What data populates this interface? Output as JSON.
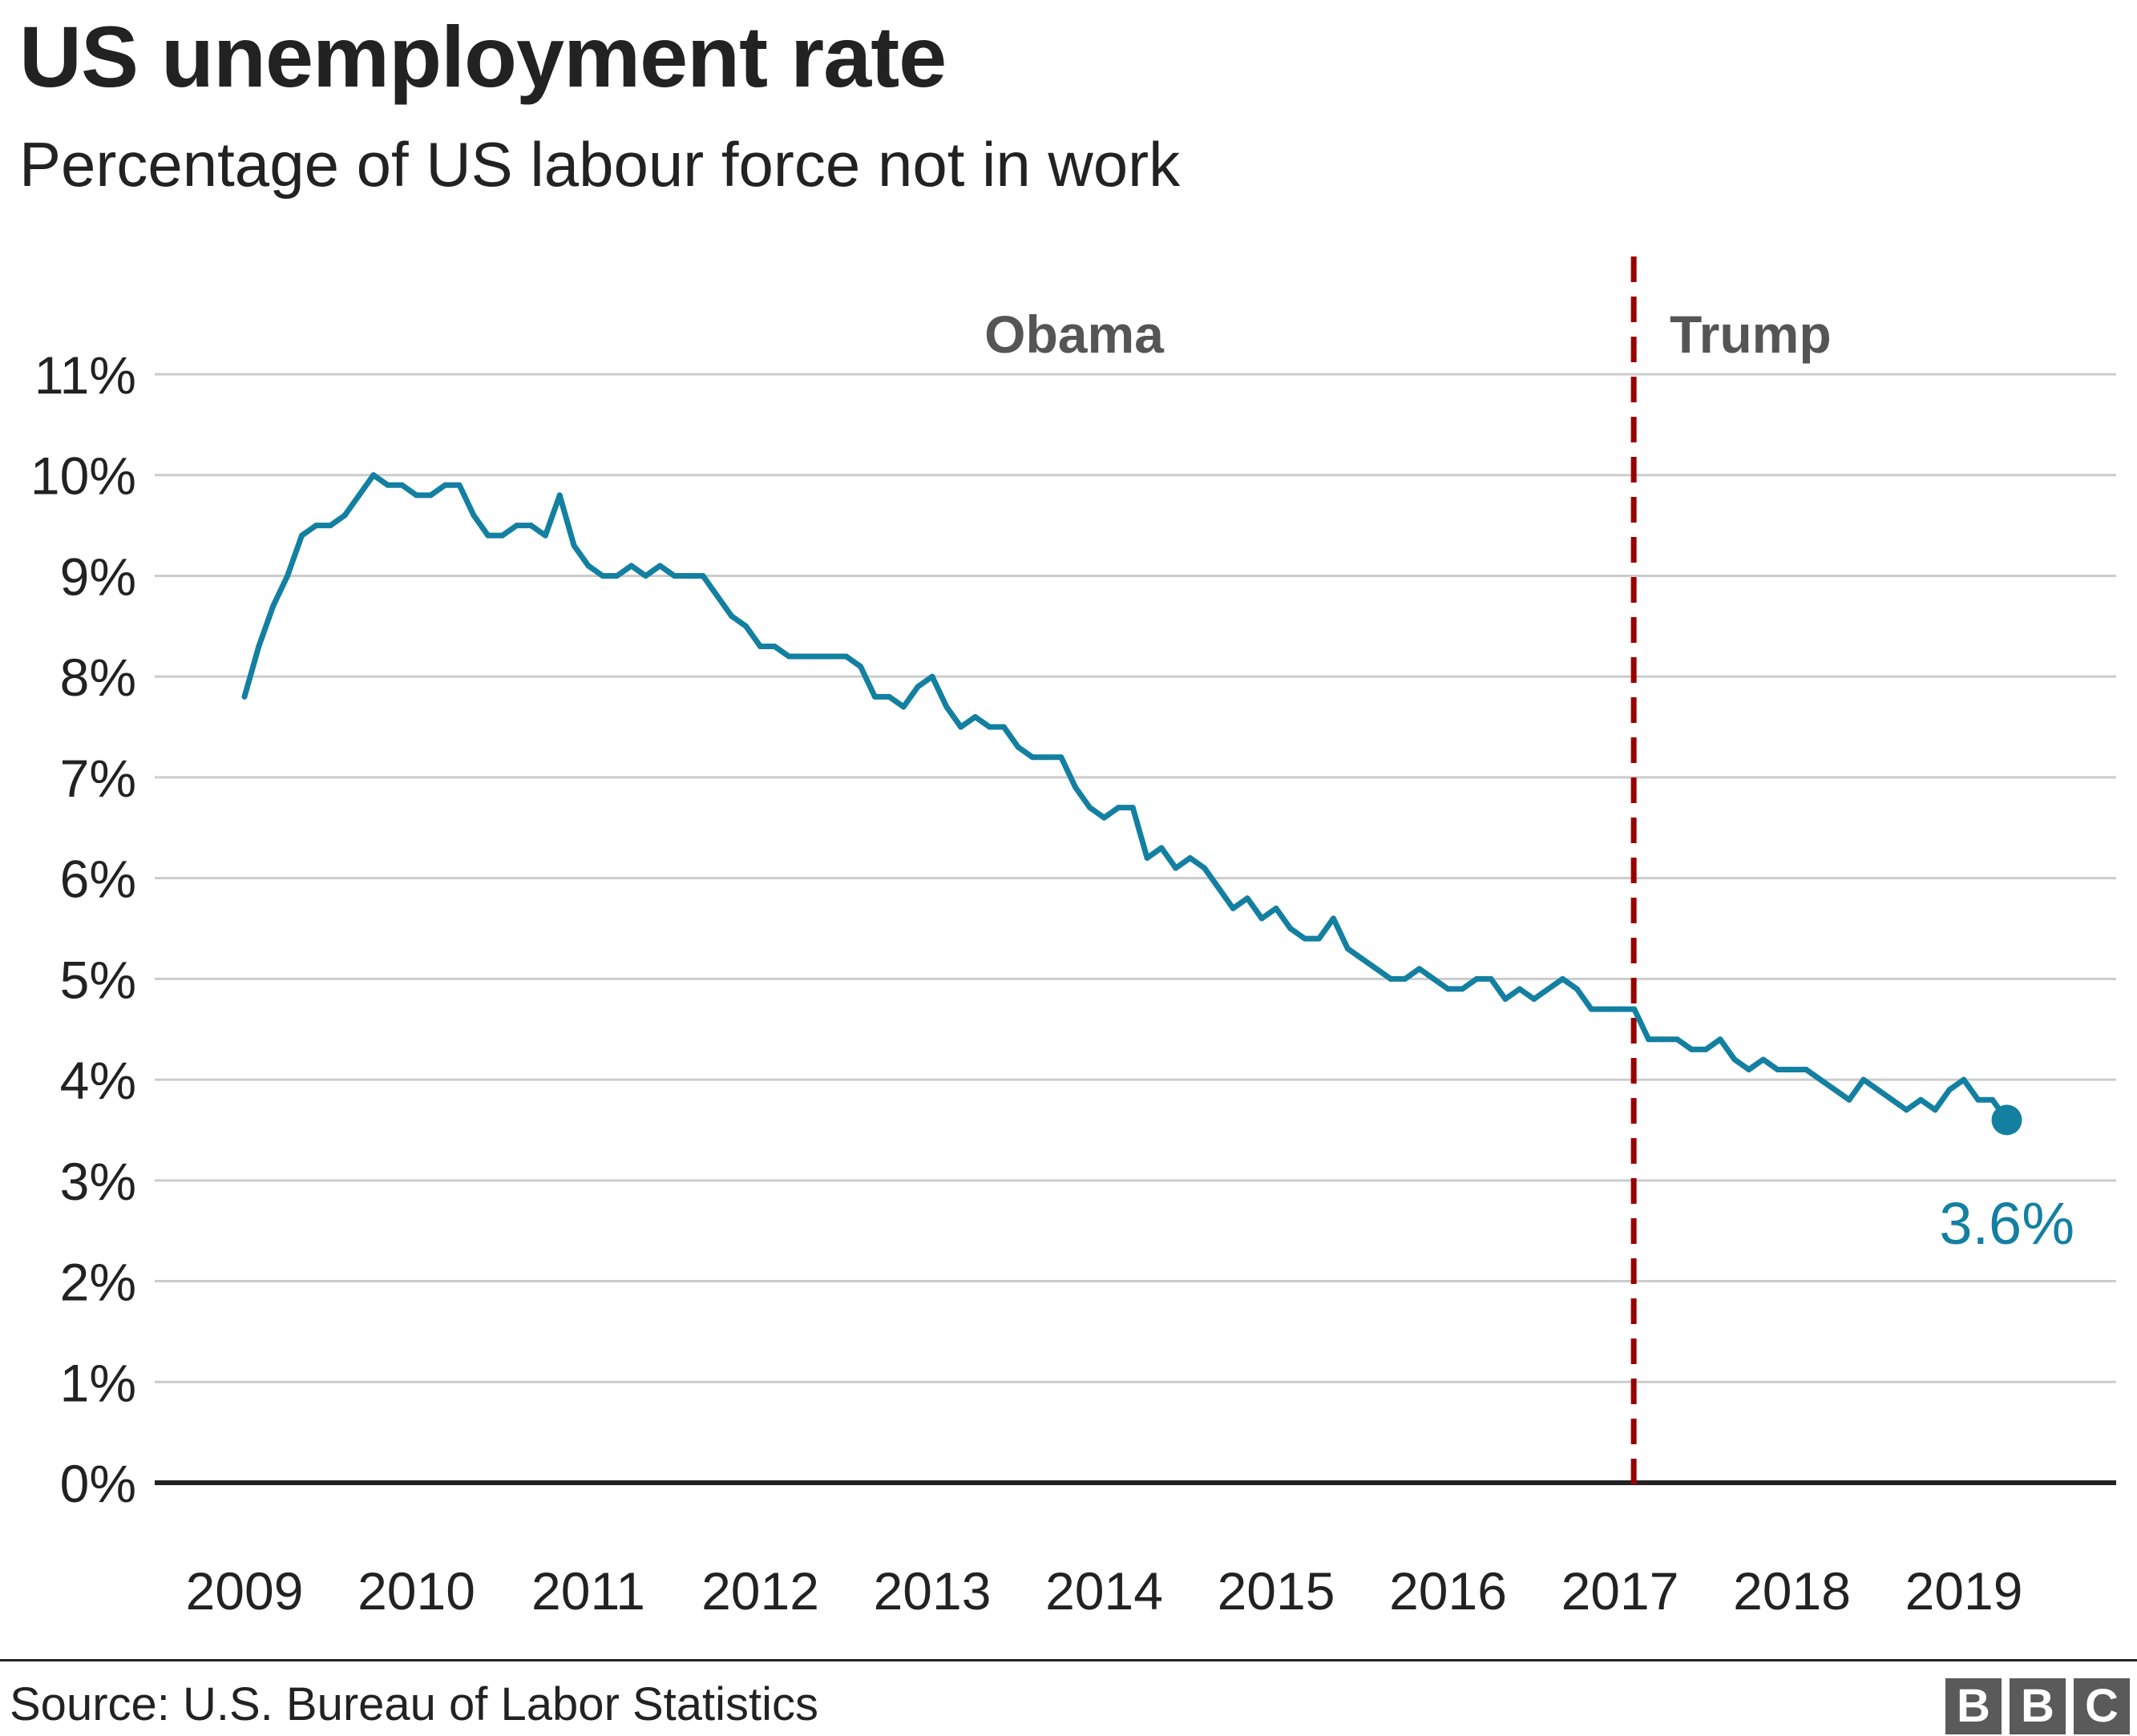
{
  "title": "US unemployment rate",
  "subtitle": "Percentage of US labour force not in work",
  "source": "Source: U.S. Bureau of Labor Statistics",
  "logo": [
    "B",
    "B",
    "C"
  ],
  "colors": {
    "line": "#1380a1",
    "divider": "#990000",
    "grid": "#cccccc",
    "axis": "#222222",
    "period_label": "#555555"
  },
  "chart_data": {
    "type": "line",
    "x_start": 2009.0,
    "x_step": 0.08333,
    "xlim": [
      2009.0,
      2019.33
    ],
    "ylim": [
      0,
      11
    ],
    "y_ticks": [
      0,
      1,
      2,
      3,
      4,
      5,
      6,
      7,
      8,
      9,
      10,
      11
    ],
    "y_tick_labels": [
      "0%",
      "1%",
      "2%",
      "3%",
      "4%",
      "5%",
      "6%",
      "7%",
      "8%",
      "9%",
      "10%",
      "11%"
    ],
    "x_ticks": [
      2009,
      2010,
      2011,
      2012,
      2013,
      2014,
      2015,
      2016,
      2017,
      2018,
      2019
    ],
    "x_tick_labels": [
      "2009",
      "2010",
      "2011",
      "2012",
      "2013",
      "2014",
      "2015",
      "2016",
      "2017",
      "2018",
      "2019"
    ],
    "grid": true,
    "values": [
      7.8,
      8.3,
      8.7,
      9.0,
      9.4,
      9.5,
      9.5,
      9.6,
      9.8,
      10.0,
      9.9,
      9.9,
      9.8,
      9.8,
      9.9,
      9.9,
      9.6,
      9.4,
      9.4,
      9.5,
      9.5,
      9.4,
      9.8,
      9.3,
      9.1,
      9.0,
      9.0,
      9.1,
      9.0,
      9.1,
      9.0,
      9.0,
      9.0,
      8.8,
      8.6,
      8.5,
      8.3,
      8.3,
      8.2,
      8.2,
      8.2,
      8.2,
      8.2,
      8.1,
      7.8,
      7.8,
      7.7,
      7.9,
      8.0,
      7.7,
      7.5,
      7.6,
      7.5,
      7.5,
      7.3,
      7.2,
      7.2,
      7.2,
      6.9,
      6.7,
      6.6,
      6.7,
      6.7,
      6.2,
      6.3,
      6.1,
      6.2,
      6.1,
      5.9,
      5.7,
      5.8,
      5.6,
      5.7,
      5.5,
      5.4,
      5.4,
      5.6,
      5.3,
      5.2,
      5.1,
      5.0,
      5.0,
      5.1,
      5.0,
      4.9,
      4.9,
      5.0,
      5.0,
      4.8,
      4.9,
      4.8,
      4.9,
      5.0,
      4.9,
      4.7,
      4.7,
      4.7,
      4.7,
      4.4,
      4.4,
      4.4,
      4.3,
      4.3,
      4.4,
      4.2,
      4.1,
      4.2,
      4.1,
      4.1,
      4.1,
      4.0,
      3.9,
      3.8,
      4.0,
      3.9,
      3.8,
      3.7,
      3.8,
      3.7,
      3.9,
      4.0,
      3.8,
      3.8,
      3.6
    ],
    "end_label": "3.6%",
    "divider_x": 2017.08,
    "period_labels": [
      {
        "text": "Obama",
        "x": 2013.8
      },
      {
        "text": "Trump",
        "x": 2017.7
      }
    ]
  }
}
